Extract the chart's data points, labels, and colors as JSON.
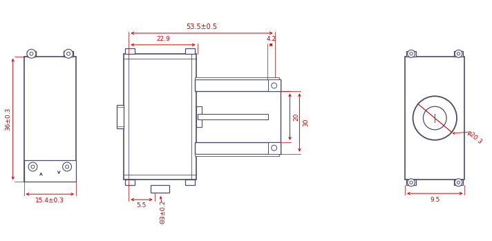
{
  "bg_color": "white",
  "line_color": "#4a4a6a",
  "dim_color": "#cc0000",
  "fig_width": 7.12,
  "fig_height": 3.49,
  "dimensions": {
    "overall_length": "53.5±0.5",
    "motor_length": "22.9",
    "shaft_length": "4.2",
    "height_20": "20",
    "height_30": "30",
    "left_height": "36±0.3",
    "left_width": "15.4±0.3",
    "shaft_diam": "Θ3±0.2",
    "shaft_offset": "5.5",
    "right_diam": "φ20.3",
    "right_width": "9.5"
  }
}
